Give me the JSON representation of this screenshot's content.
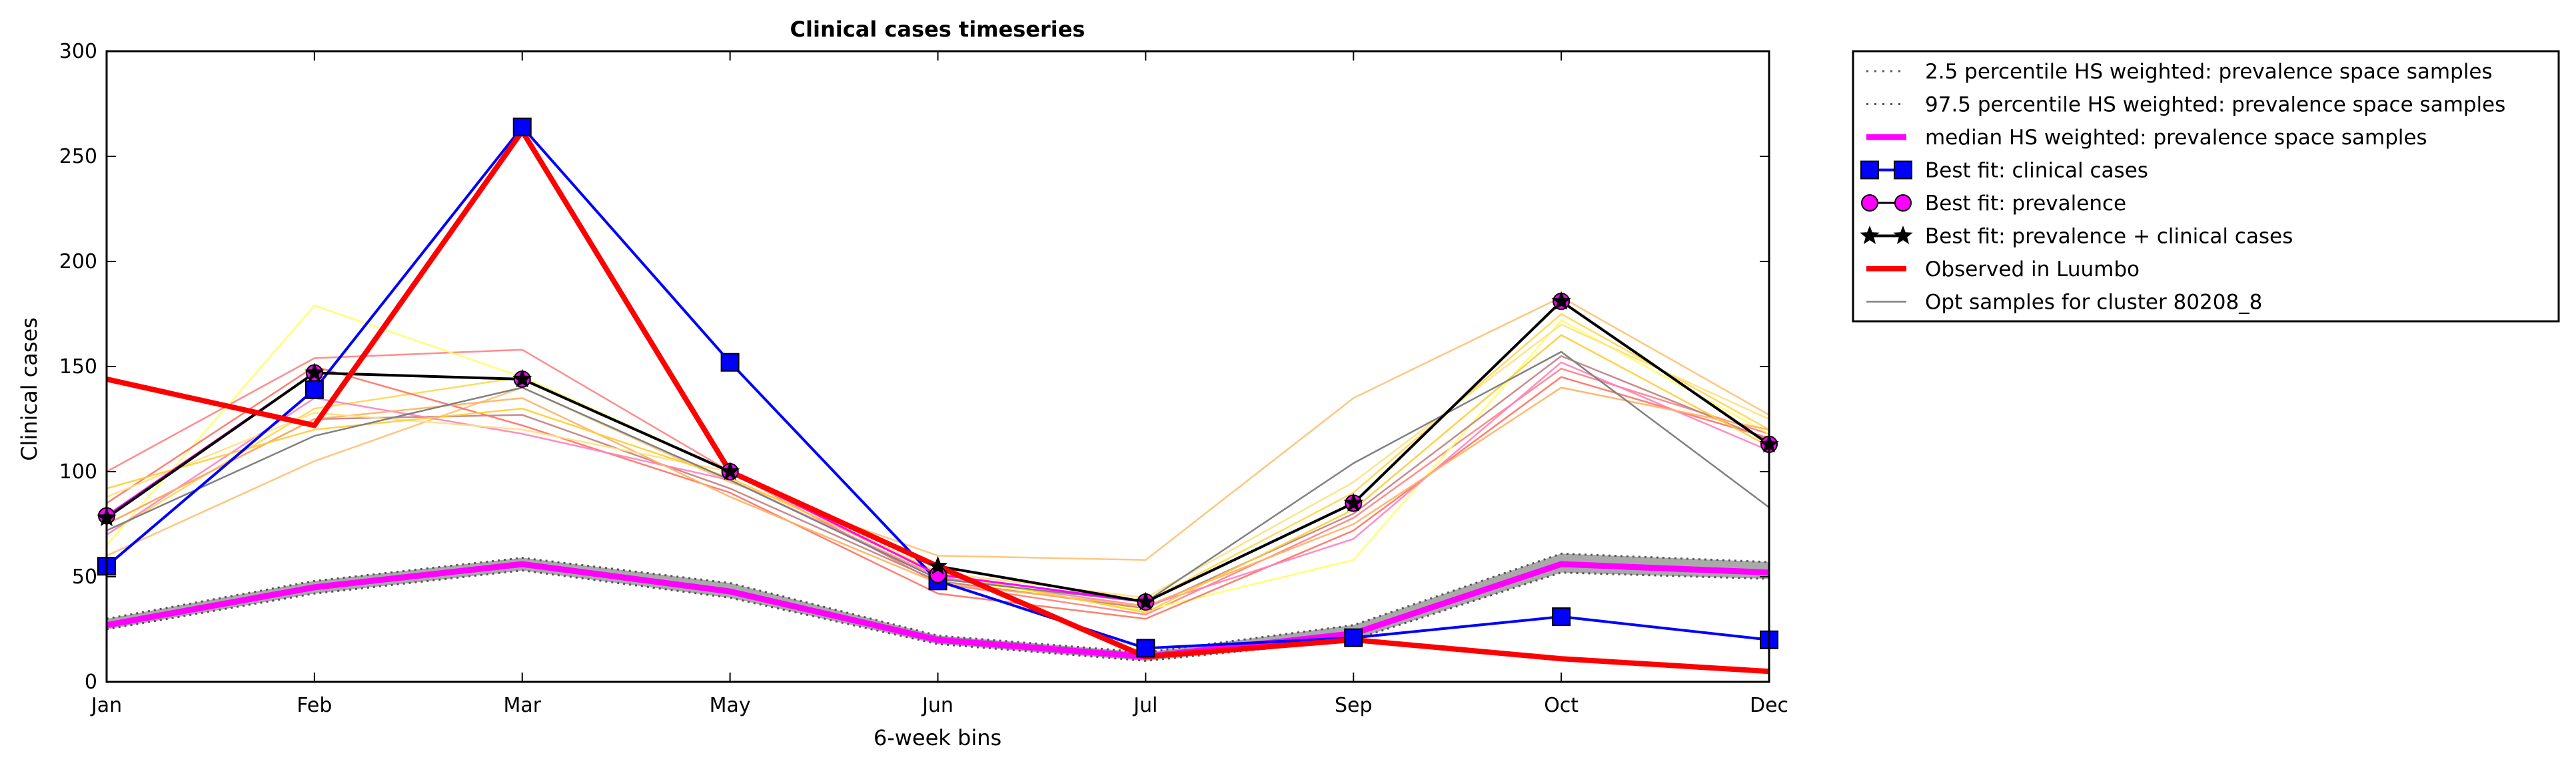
{
  "chart_data": {
    "type": "line",
    "title": "Clinical cases timeseries",
    "xlabel": "6-week bins",
    "ylabel": "Clinical cases",
    "categories": [
      "Jan",
      "Feb",
      "Mar",
      "May",
      "Jun",
      "Jul",
      "Sep",
      "Oct",
      "Dec"
    ],
    "ylim": [
      0,
      300
    ],
    "yticks": [
      0,
      50,
      100,
      150,
      200,
      250,
      300
    ],
    "grid": false,
    "legend_position": "outside-top-right",
    "band": {
      "lower_name": "2.5 percentile HS weighted: prevalence space samples",
      "upper_name": "97.5 percentile HS weighted: prevalence space samples",
      "lower": [
        25,
        42,
        53,
        40,
        18,
        10,
        20,
        52,
        49
      ],
      "upper": [
        30,
        48,
        59,
        47,
        22,
        14,
        27,
        61,
        57
      ],
      "fill_color": "#a9a9a9",
      "line_color": "#555555"
    },
    "series": [
      {
        "name": "median HS weighted: prevalence space samples",
        "role": "median",
        "values": [
          27,
          45,
          56,
          43,
          20,
          12,
          23,
          56,
          52
        ],
        "color": "#ff00ff",
        "marker": "none"
      },
      {
        "name": "Best fit: clinical cases",
        "role": "best-clinical",
        "values": [
          55,
          139,
          264,
          152,
          48,
          16,
          21,
          31,
          20
        ],
        "color": "#0000ff",
        "marker": "square"
      },
      {
        "name": "Best fit: prevalence",
        "role": "best-prevalence",
        "values": [
          79,
          147,
          144,
          100,
          51,
          38,
          85,
          181,
          113
        ],
        "color": "#ff00ff",
        "marker": "circle"
      },
      {
        "name": "Best fit: prevalence + clinical cases",
        "role": "best-combined",
        "values": [
          78,
          147,
          144,
          100,
          55,
          38,
          85,
          181,
          113
        ],
        "color": "#000000",
        "marker": "star"
      },
      {
        "name": "Observed in Luumbo",
        "role": "observed",
        "values": [
          144,
          122,
          262,
          100,
          55,
          12,
          20,
          11,
          5
        ],
        "color": "#ff0000",
        "marker": "none"
      },
      {
        "name": "Opt samples for cluster 80208_8",
        "role": "opt-sample",
        "values": [
          72,
          117,
          140,
          96,
          49,
          38,
          104,
          157,
          83
        ],
        "color": "#808080",
        "marker": "none"
      }
    ],
    "opt_samples": [
      {
        "values": [
          100,
          154,
          158,
          100,
          47,
          32,
          78,
          149,
          118
        ],
        "color": "#ff8080"
      },
      {
        "values": [
          70,
          130,
          145,
          100,
          55,
          38,
          90,
          175,
          120
        ],
        "color": "#ffd54f"
      },
      {
        "values": [
          65,
          179,
          145,
          100,
          50,
          34,
          58,
          172,
          118
        ],
        "color": "#ffff60"
      },
      {
        "values": [
          60,
          105,
          140,
          95,
          60,
          58,
          135,
          183,
          127
        ],
        "color": "#ffc070"
      },
      {
        "values": [
          75,
          125,
          127,
          92,
          48,
          35,
          80,
          155,
          115
        ],
        "color": "#c08080"
      },
      {
        "values": [
          85,
          150,
          122,
          90,
          42,
          30,
          72,
          145,
          116
        ],
        "color": "#ff7060"
      },
      {
        "values": [
          70,
          135,
          118,
          96,
          50,
          36,
          68,
          152,
          110
        ],
        "color": "#ff80c0"
      },
      {
        "values": [
          75,
          125,
          135,
          88,
          47,
          36,
          75,
          140,
          120
        ],
        "color": "#ffb060"
      },
      {
        "values": [
          88,
          128,
          120,
          100,
          52,
          40,
          95,
          170,
          125
        ],
        "color": "#ffe080"
      },
      {
        "values": [
          92,
          120,
          130,
          97,
          52,
          33,
          82,
          165,
          112
        ],
        "color": "#ffcc33"
      }
    ]
  }
}
